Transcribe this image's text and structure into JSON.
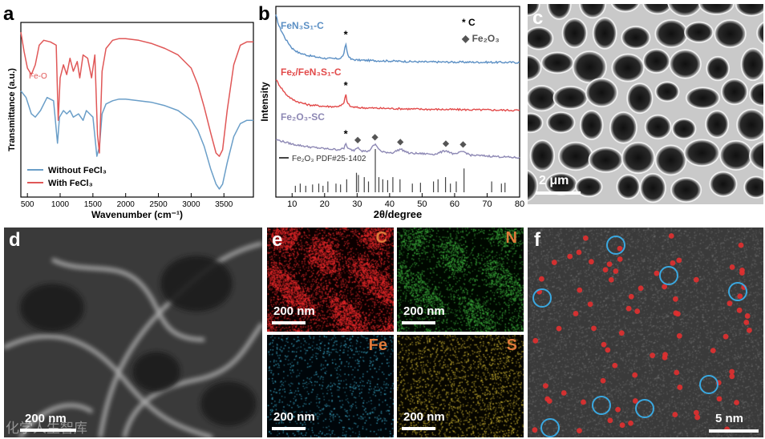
{
  "panels": {
    "a": {
      "label": "a"
    },
    "b": {
      "label": "b"
    },
    "c": {
      "label": "c",
      "scale": "2 μm"
    },
    "d": {
      "label": "d",
      "scale": "200 nm"
    },
    "e": {
      "label": "e",
      "scale": "200 nm",
      "elements": [
        "C",
        "N",
        "Fe",
        "S"
      ]
    },
    "f": {
      "label": "f",
      "scale": "5 nm"
    }
  },
  "watermark": "化学人生智库",
  "chart_data": [
    {
      "type": "line",
      "panel": "a",
      "xlabel": "Wavenumber (cm⁻¹)",
      "ylabel": "Transmittance (a.u.)",
      "xlim": [
        400,
        3950
      ],
      "xticks": [
        500,
        1000,
        1500,
        2000,
        2500,
        3000,
        3500
      ],
      "annotations": [
        "Fe-O"
      ],
      "legend_position": "bottom-left",
      "series": [
        {
          "name": "Without FeCl₃",
          "color": "#6a9ec8",
          "x": [
            400,
            480,
            560,
            620,
            700,
            800,
            900,
            960,
            990,
            1050,
            1100,
            1150,
            1200,
            1280,
            1350,
            1400,
            1450,
            1500,
            1560,
            1600,
            1640,
            1700,
            1800,
            1900,
            2000,
            2200,
            2400,
            2600,
            2800,
            3000,
            3100,
            3200,
            3300,
            3380,
            3430,
            3480,
            3550,
            3650,
            3750,
            3850,
            3950
          ],
          "y": [
            0.62,
            0.58,
            0.48,
            0.46,
            0.5,
            0.58,
            0.56,
            0.3,
            0.46,
            0.5,
            0.48,
            0.5,
            0.46,
            0.48,
            0.44,
            0.5,
            0.48,
            0.46,
            0.22,
            0.28,
            0.48,
            0.54,
            0.56,
            0.57,
            0.57,
            0.56,
            0.55,
            0.53,
            0.5,
            0.44,
            0.38,
            0.28,
            0.14,
            0.05,
            0.02,
            0.05,
            0.18,
            0.34,
            0.42,
            0.44,
            0.44
          ]
        },
        {
          "name": "With FeCl₃",
          "color": "#e05757",
          "x": [
            400,
            450,
            500,
            560,
            620,
            680,
            750,
            850,
            940,
            970,
            1000,
            1050,
            1100,
            1150,
            1200,
            1260,
            1300,
            1350,
            1420,
            1480,
            1530,
            1570,
            1600,
            1640,
            1700,
            1800,
            1900,
            2000,
            2200,
            2400,
            2600,
            2800,
            3000,
            3100,
            3200,
            3300,
            3380,
            3430,
            3480,
            3550,
            3650,
            3750,
            3850,
            3950
          ],
          "y": [
            0.98,
            0.86,
            0.76,
            0.72,
            0.78,
            0.9,
            0.93,
            0.92,
            0.9,
            0.44,
            0.7,
            0.78,
            0.72,
            0.82,
            0.74,
            0.8,
            0.7,
            0.84,
            0.82,
            0.7,
            0.84,
            0.35,
            0.24,
            0.74,
            0.88,
            0.93,
            0.94,
            0.94,
            0.93,
            0.91,
            0.88,
            0.84,
            0.76,
            0.66,
            0.52,
            0.36,
            0.24,
            0.22,
            0.26,
            0.5,
            0.78,
            0.9,
            0.92,
            0.92
          ]
        }
      ]
    },
    {
      "type": "line",
      "panel": "b",
      "xlabel": "2θ/degree",
      "ylabel": "Intensity",
      "xlim": [
        5,
        80
      ],
      "xticks": [
        10,
        20,
        30,
        40,
        50,
        60,
        70,
        80
      ],
      "legend": [
        "* C",
        "◆ Fe₂O₃"
      ],
      "series": [
        {
          "name": "FeN₃S₁-C",
          "color": "#5b8fc4",
          "offset": 0.7,
          "x": [
            5,
            6,
            8,
            10,
            12,
            15,
            18,
            20,
            23,
            25,
            26,
            26.5,
            27,
            28,
            30,
            35,
            40,
            50,
            60,
            70,
            80
          ],
          "y": [
            0.26,
            0.2,
            0.13,
            0.08,
            0.055,
            0.04,
            0.03,
            0.025,
            0.022,
            0.025,
            0.05,
            0.11,
            0.05,
            0.02,
            0.015,
            0.012,
            0.01,
            0.005,
            0.004,
            0.003,
            0.002
          ],
          "peak_marks": [
            {
              "x": 26.5,
              "symbol": "*"
            }
          ]
        },
        {
          "name": "Feₓ/FeN₃S₁-C",
          "color": "#e24a4a",
          "offset": 0.44,
          "x": [
            5,
            6,
            8,
            10,
            12,
            15,
            18,
            20,
            23,
            25,
            26,
            26.5,
            27,
            28,
            30,
            35,
            40,
            50,
            60,
            70,
            80
          ],
          "y": [
            0.17,
            0.14,
            0.09,
            0.06,
            0.045,
            0.03,
            0.025,
            0.022,
            0.02,
            0.025,
            0.04,
            0.09,
            0.04,
            0.02,
            0.015,
            0.012,
            0.01,
            0.006,
            0.004,
            0.002,
            0.0
          ],
          "peak_marks": [
            {
              "x": 26.5,
              "symbol": "*"
            }
          ]
        },
        {
          "name": "Fe₂O₃-SC",
          "color": "#8d88b4",
          "offset": 0.18,
          "x": [
            5,
            7,
            10,
            15,
            20,
            24,
            26,
            26.5,
            27,
            29,
            30.2,
            31.5,
            33.5,
            35.5,
            37.5,
            41,
            43.3,
            46,
            54,
            57.3,
            60,
            62.6,
            65,
            70,
            80
          ],
          "y": [
            0.1,
            0.09,
            0.075,
            0.06,
            0.05,
            0.045,
            0.05,
            0.085,
            0.05,
            0.04,
            0.06,
            0.038,
            0.035,
            0.075,
            0.032,
            0.028,
            0.048,
            0.025,
            0.02,
            0.04,
            0.018,
            0.035,
            0.014,
            0.01,
            0.0
          ],
          "peak_marks": [
            {
              "x": 26.5,
              "symbol": "*"
            },
            {
              "x": 30.2,
              "symbol": "◆"
            },
            {
              "x": 35.5,
              "symbol": "◆"
            },
            {
              "x": 43.3,
              "symbol": "◆"
            },
            {
              "x": 57.3,
              "symbol": "◆"
            },
            {
              "x": 62.6,
              "symbol": "◆"
            }
          ]
        }
      ],
      "reference": {
        "name": "Fe₂O₃ PDF#25-1402",
        "color": "#444444",
        "positions": [
          11.0,
          12.5,
          14.2,
          16.3,
          18.2,
          19.5,
          21.0,
          23.5,
          24.9,
          26.8,
          29.8,
          30.4,
          32.2,
          33.5,
          35.6,
          36.7,
          37.9,
          39.4,
          41.0,
          43.2,
          47.0,
          49.5,
          53.5,
          54.9,
          57.2,
          58.7,
          60.5,
          62.9,
          71.4,
          74.4,
          75.5
        ],
        "intensities": [
          0.15,
          0.2,
          0.15,
          0.18,
          0.2,
          0.15,
          0.25,
          0.2,
          0.18,
          0.3,
          0.45,
          0.4,
          0.35,
          0.25,
          1.0,
          0.35,
          0.3,
          0.28,
          0.35,
          0.3,
          0.2,
          0.22,
          0.25,
          0.3,
          0.35,
          0.2,
          0.25,
          0.55,
          0.25,
          0.2,
          0.22
        ]
      }
    }
  ]
}
